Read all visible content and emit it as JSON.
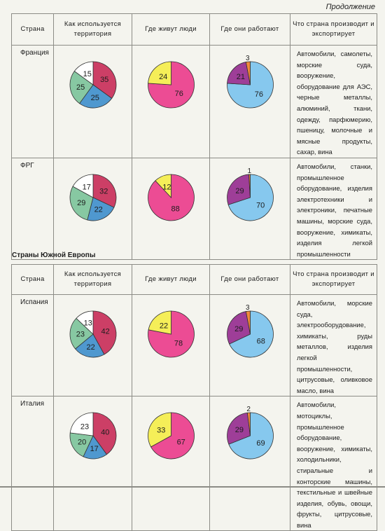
{
  "page": {
    "continued_label": "Продолжение",
    "section_title": "Страны Южной Европы"
  },
  "headers": {
    "country": "Страна",
    "territory": "Как используется территория",
    "people": "Где живут люди",
    "work": "Где они работают",
    "export": "Что страна производит и экспортирует"
  },
  "tables": [
    {
      "rows": [
        {
          "country": "Франция",
          "territory": [
            35,
            25,
            25,
            15
          ],
          "people": [
            76,
            24
          ],
          "work": [
            76,
            21,
            3
          ],
          "export": "Автомобили, самолеты, морские суда, вооружение, оборудование для АЭС, черные металлы, алюминий, ткани, одежду, парфюмерию, пшеницу, молочные и мясные продукты, сахар, вина"
        },
        {
          "country": "ФРГ",
          "territory": [
            32,
            22,
            29,
            17
          ],
          "people": [
            88,
            12
          ],
          "work": [
            70,
            29,
            1
          ],
          "export": "Автомобили, станки, промышленное оборудование, изделия электротехники и электроники, печатные машины, морские суда, вооружение, химикаты, изделия легкой промышленности"
        }
      ]
    },
    {
      "rows": [
        {
          "country": "Испания",
          "territory": [
            42,
            22,
            23,
            13
          ],
          "people": [
            78,
            22
          ],
          "work": [
            68,
            29,
            3
          ],
          "export": "Автомобили, морские суда, электрооборудование, химикаты, руды металлов, изделия легкой промышленности, цитрусовые, оливковое масло, вина"
        },
        {
          "country": "Италия",
          "territory": [
            40,
            17,
            20,
            23
          ],
          "people": [
            67,
            33
          ],
          "work": [
            69,
            29,
            2
          ],
          "export": "Автомобили, мотоциклы, промышленное оборудование, вооружение, химикаты, холодильники, стиральные и конторские машины, текстильные и швейные изделия, обувь, овощи, фрукты, цитрусовые, вина"
        }
      ]
    }
  ],
  "colors": {
    "territory": [
      "#cc3f66",
      "#4f98cf",
      "#87c8a2",
      "#ffffff"
    ],
    "people": [
      "#ec4c94",
      "#f5ee58"
    ],
    "work": [
      "#86c8ee",
      "#9e3e98",
      "#ef8a3c"
    ]
  }
}
